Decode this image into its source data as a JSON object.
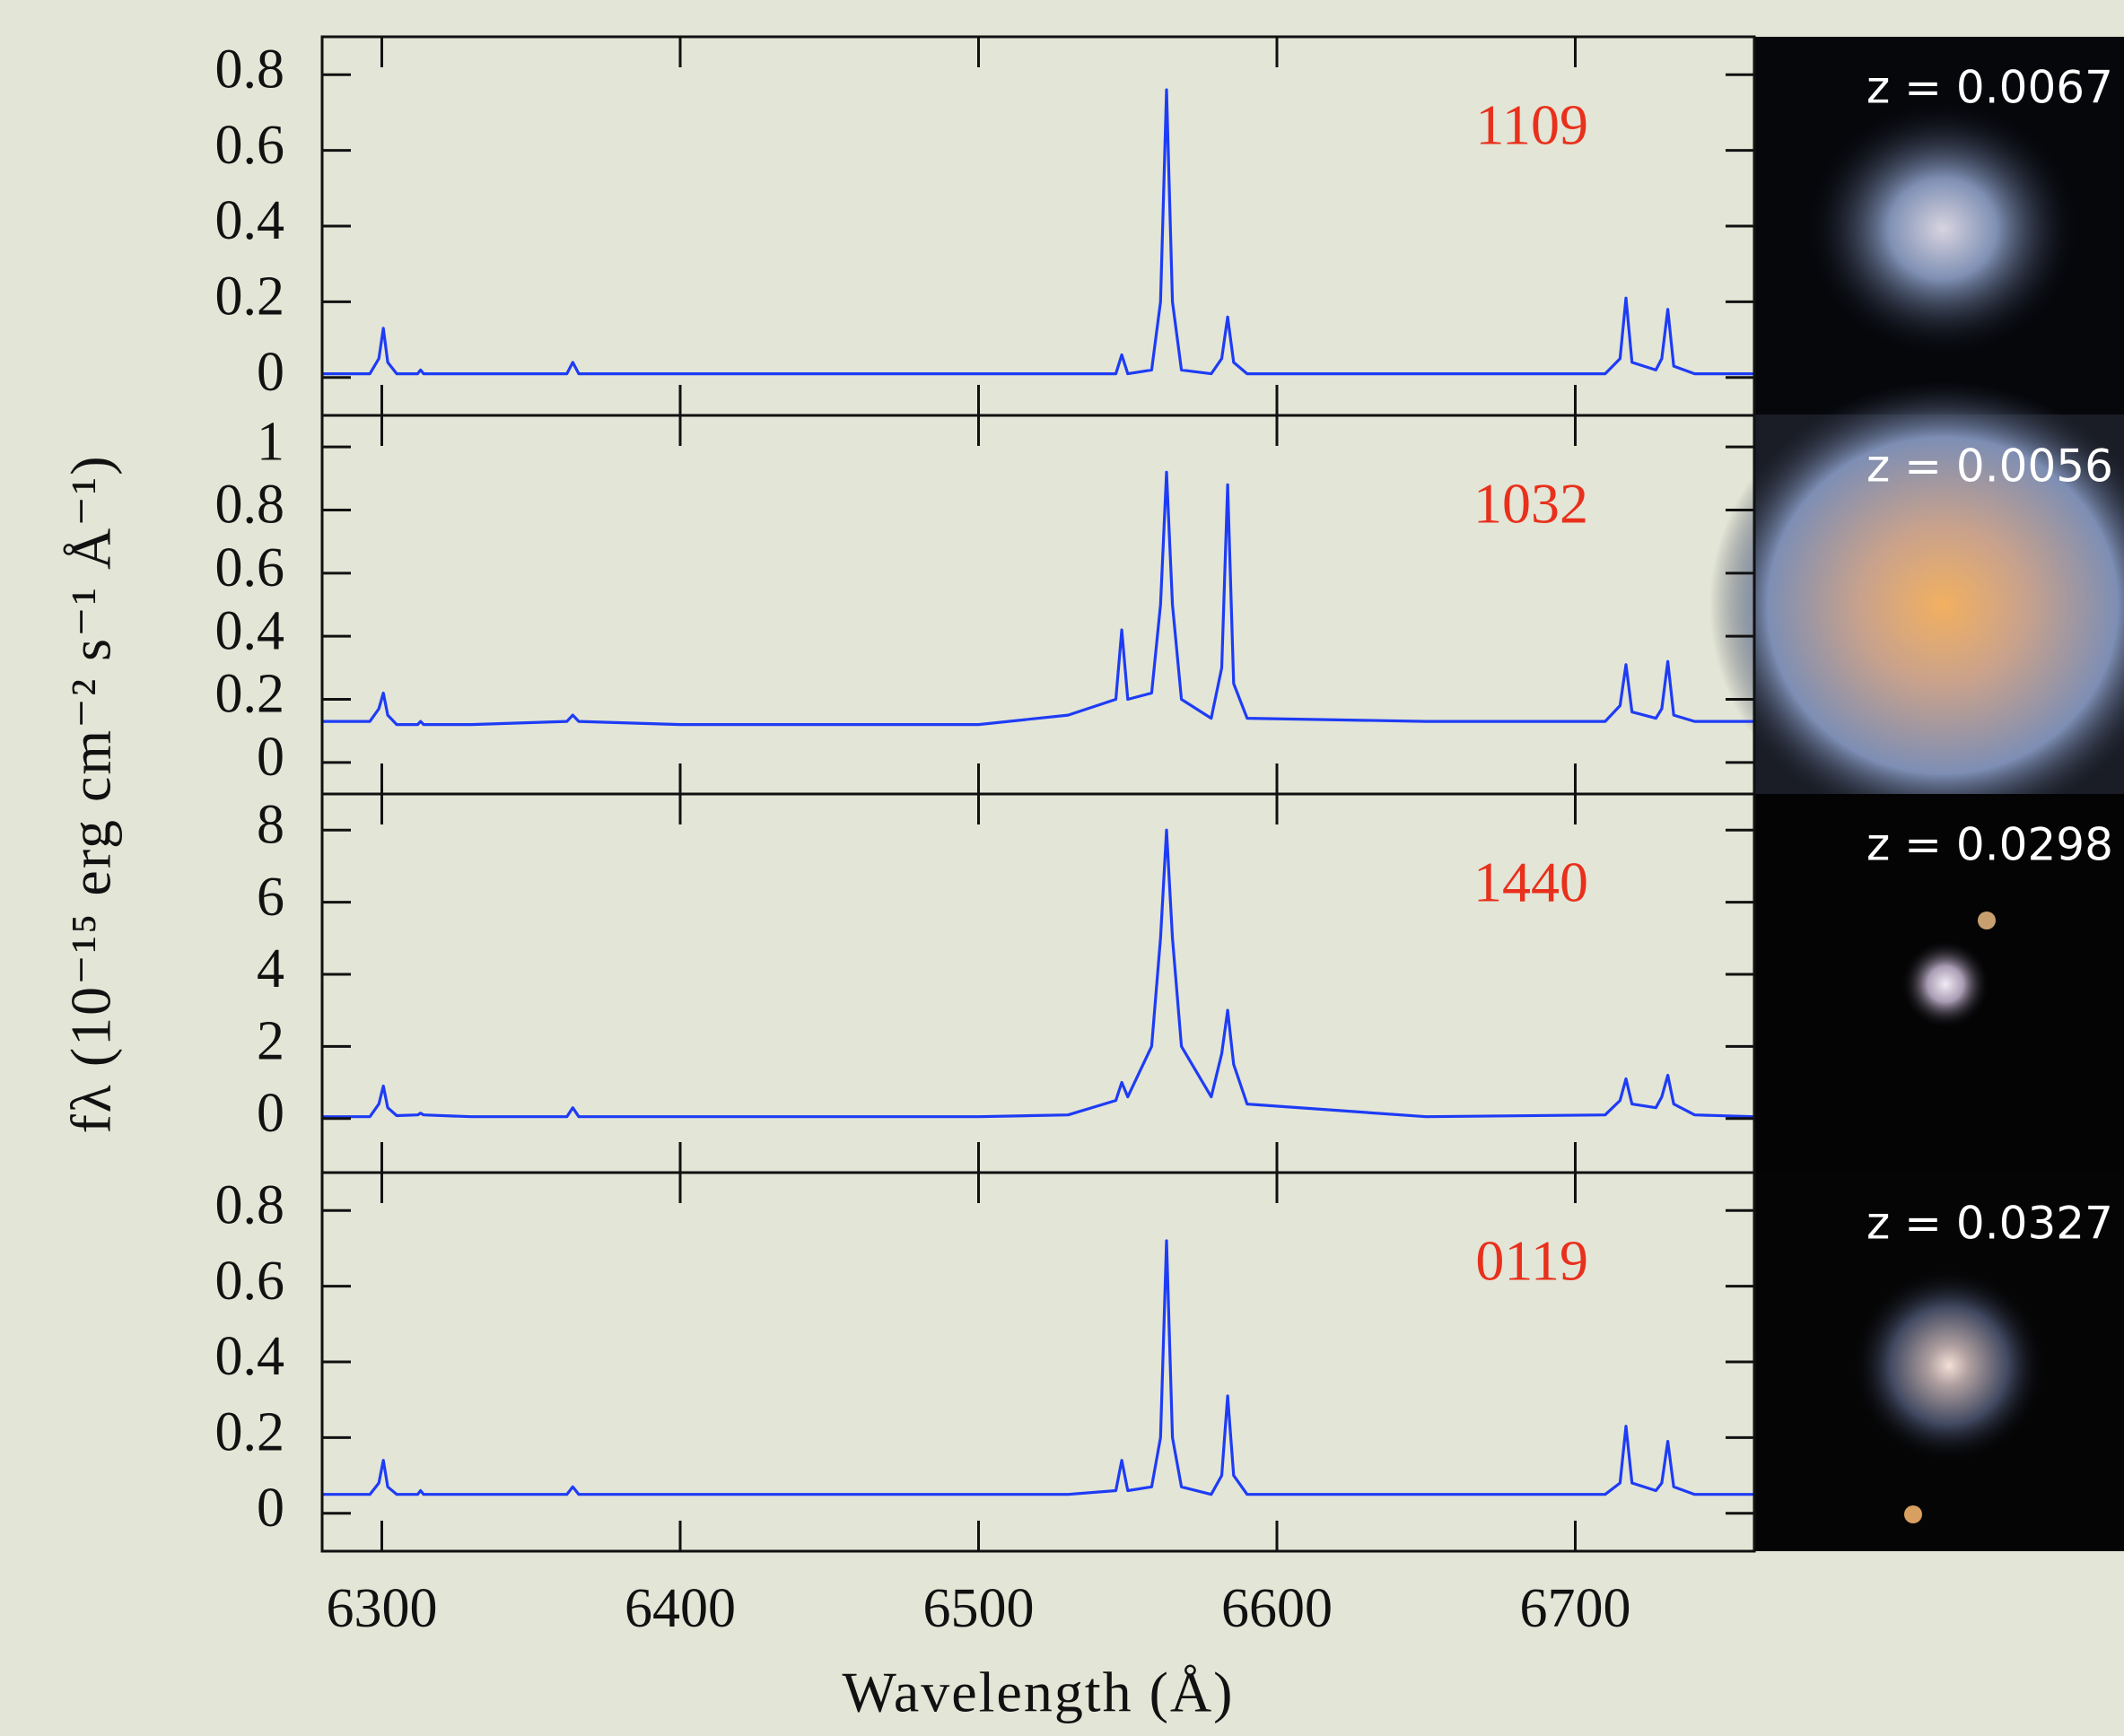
{
  "chart_data": [
    {
      "type": "line",
      "label": "1109",
      "redshift_label": "z = 0.0067",
      "ylabel": "fλ (10⁻¹⁵ erg cm⁻² s⁻¹ Å⁻¹)",
      "x": [
        6280,
        6296,
        6299,
        6300.5,
        6302,
        6305,
        6312,
        6313,
        6314,
        6330,
        6362,
        6364,
        6366,
        6400,
        6450,
        6500,
        6530,
        6546,
        6548,
        6550,
        6558,
        6561,
        6563,
        6565,
        6568,
        6578,
        6581.5,
        6583.5,
        6585.5,
        6590,
        6650,
        6710,
        6715,
        6717,
        6719,
        6727,
        6729,
        6731,
        6733,
        6740,
        6760
      ],
      "values": [
        0.01,
        0.01,
        0.05,
        0.13,
        0.04,
        0.01,
        0.01,
        0.02,
        0.01,
        0.01,
        0.01,
        0.04,
        0.01,
        0.01,
        0.01,
        0.01,
        0.01,
        0.01,
        0.06,
        0.01,
        0.02,
        0.2,
        0.76,
        0.2,
        0.02,
        0.01,
        0.05,
        0.16,
        0.04,
        0.01,
        0.01,
        0.01,
        0.05,
        0.21,
        0.04,
        0.02,
        0.05,
        0.18,
        0.03,
        0.01,
        0.01
      ],
      "color": "#1e3cf5",
      "xlim": [
        6280,
        6760
      ],
      "xticks": [
        6300,
        6400,
        6500,
        6600,
        6700
      ],
      "ylim": [
        -0.1,
        0.9
      ],
      "yticks": [
        0,
        0.2,
        0.4,
        0.6,
        0.8
      ]
    },
    {
      "type": "line",
      "label": "1032",
      "redshift_label": "z = 0.0056",
      "x": [
        6280,
        6296,
        6299,
        6300.5,
        6302,
        6305,
        6312,
        6313,
        6314,
        6330,
        6362,
        6364,
        6366,
        6400,
        6450,
        6500,
        6530,
        6546,
        6548,
        6550,
        6558,
        6561,
        6563,
        6565,
        6568,
        6578,
        6581.5,
        6583.5,
        6585.5,
        6590,
        6650,
        6710,
        6715,
        6717,
        6719,
        6727,
        6729,
        6731,
        6733,
        6740,
        6760
      ],
      "values": [
        0.13,
        0.13,
        0.17,
        0.22,
        0.15,
        0.12,
        0.12,
        0.13,
        0.12,
        0.12,
        0.13,
        0.15,
        0.13,
        0.12,
        0.12,
        0.12,
        0.15,
        0.2,
        0.42,
        0.2,
        0.22,
        0.5,
        0.92,
        0.5,
        0.2,
        0.14,
        0.3,
        0.88,
        0.25,
        0.14,
        0.13,
        0.13,
        0.18,
        0.31,
        0.16,
        0.14,
        0.17,
        0.32,
        0.15,
        0.13,
        0.13
      ],
      "color": "#1e3cf5",
      "xlim": [
        6280,
        6760
      ],
      "xticks": [
        6300,
        6400,
        6500,
        6600,
        6700
      ],
      "ylim": [
        -0.1,
        1.1
      ],
      "yticks": [
        0,
        0.2,
        0.4,
        0.6,
        0.8,
        1
      ]
    },
    {
      "type": "line",
      "label": "1440",
      "redshift_label": "z = 0.0298",
      "x": [
        6280,
        6296,
        6299,
        6300.5,
        6302,
        6305,
        6312,
        6313,
        6314,
        6330,
        6362,
        6364,
        6366,
        6400,
        6450,
        6500,
        6530,
        6546,
        6548,
        6550,
        6558,
        6561,
        6563,
        6565,
        6568,
        6578,
        6581.5,
        6583.5,
        6585.5,
        6590,
        6650,
        6710,
        6715,
        6717,
        6719,
        6727,
        6729,
        6731,
        6733,
        6740,
        6760
      ],
      "values": [
        0.05,
        0.05,
        0.4,
        0.9,
        0.3,
        0.08,
        0.1,
        0.15,
        0.1,
        0.05,
        0.05,
        0.3,
        0.05,
        0.05,
        0.05,
        0.05,
        0.1,
        0.5,
        1.0,
        0.6,
        2.0,
        5.0,
        8.0,
        5.0,
        2.0,
        0.6,
        1.8,
        3.0,
        1.5,
        0.4,
        0.05,
        0.1,
        0.5,
        1.1,
        0.4,
        0.3,
        0.6,
        1.2,
        0.4,
        0.1,
        0.05
      ],
      "color": "#1e3cf5",
      "xlim": [
        6280,
        6760
      ],
      "xticks": [
        6300,
        6400,
        6500,
        6600,
        6700
      ],
      "ylim": [
        -1.5,
        9
      ],
      "yticks": [
        0,
        2,
        4,
        6,
        8
      ]
    },
    {
      "type": "line",
      "label": "0119",
      "redshift_label": "z = 0.0327",
      "xlabel": "Wavelength (Å)",
      "x": [
        6280,
        6296,
        6299,
        6300.5,
        6302,
        6305,
        6312,
        6313,
        6314,
        6330,
        6362,
        6364,
        6366,
        6400,
        6450,
        6500,
        6530,
        6546,
        6548,
        6550,
        6558,
        6561,
        6563,
        6565,
        6568,
        6578,
        6581.5,
        6583.5,
        6585.5,
        6590,
        6650,
        6710,
        6715,
        6717,
        6719,
        6727,
        6729,
        6731,
        6733,
        6740,
        6760
      ],
      "values": [
        0.05,
        0.05,
        0.08,
        0.14,
        0.07,
        0.05,
        0.05,
        0.06,
        0.05,
        0.05,
        0.05,
        0.07,
        0.05,
        0.05,
        0.05,
        0.05,
        0.05,
        0.06,
        0.14,
        0.06,
        0.07,
        0.2,
        0.72,
        0.2,
        0.07,
        0.05,
        0.1,
        0.31,
        0.1,
        0.05,
        0.05,
        0.05,
        0.08,
        0.23,
        0.08,
        0.06,
        0.08,
        0.19,
        0.07,
        0.05,
        0.05
      ],
      "color": "#1e3cf5",
      "xlim": [
        6280,
        6760
      ],
      "xticks": [
        6300,
        6400,
        6500,
        6600,
        6700
      ],
      "ylim": [
        -0.1,
        0.9
      ],
      "yticks": [
        0,
        0.2,
        0.4,
        0.6,
        0.8
      ]
    }
  ]
}
